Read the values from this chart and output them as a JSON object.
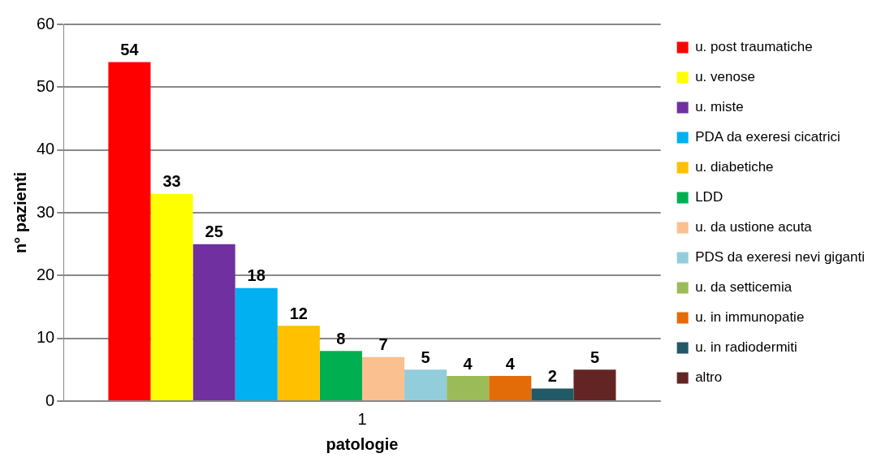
{
  "chart_data": {
    "type": "bar",
    "xlabel": "patologie",
    "ylabel": "n° pazienti",
    "categories": [
      "1"
    ],
    "series": [
      {
        "name": "u. post traumatiche",
        "color": "#ff0000",
        "values": [
          54
        ]
      },
      {
        "name": "u. venose",
        "color": "#ffff00",
        "values": [
          33
        ]
      },
      {
        "name": "u. miste",
        "color": "#7030a0",
        "values": [
          25
        ]
      },
      {
        "name": "PDA da exeresi cicatrici",
        "color": "#00b0f0",
        "values": [
          18
        ]
      },
      {
        "name": "u. diabetiche",
        "color": "#ffc000",
        "values": [
          12
        ]
      },
      {
        "name": "LDD",
        "color": "#00b050",
        "values": [
          8
        ]
      },
      {
        "name": "u. da ustione acuta",
        "color": "#fac090",
        "values": [
          7
        ]
      },
      {
        "name": "PDS da exeresi nevi giganti",
        "color": "#92cddc",
        "values": [
          5
        ]
      },
      {
        "name": "u. da setticemia",
        "color": "#9bbb59",
        "values": [
          4
        ]
      },
      {
        "name": "u. in immunopatie",
        "color": "#e36c09",
        "values": [
          4
        ]
      },
      {
        "name": "u. in radiodermiti",
        "color": "#215967",
        "values": [
          2
        ]
      },
      {
        "name": "altro",
        "color": "#632523",
        "values": [
          5
        ]
      }
    ],
    "ylim": [
      0,
      60
    ],
    "yticks": [
      0,
      10,
      20,
      30,
      40,
      50,
      60
    ],
    "grid": "y",
    "legend": "right",
    "data_labels": true
  }
}
